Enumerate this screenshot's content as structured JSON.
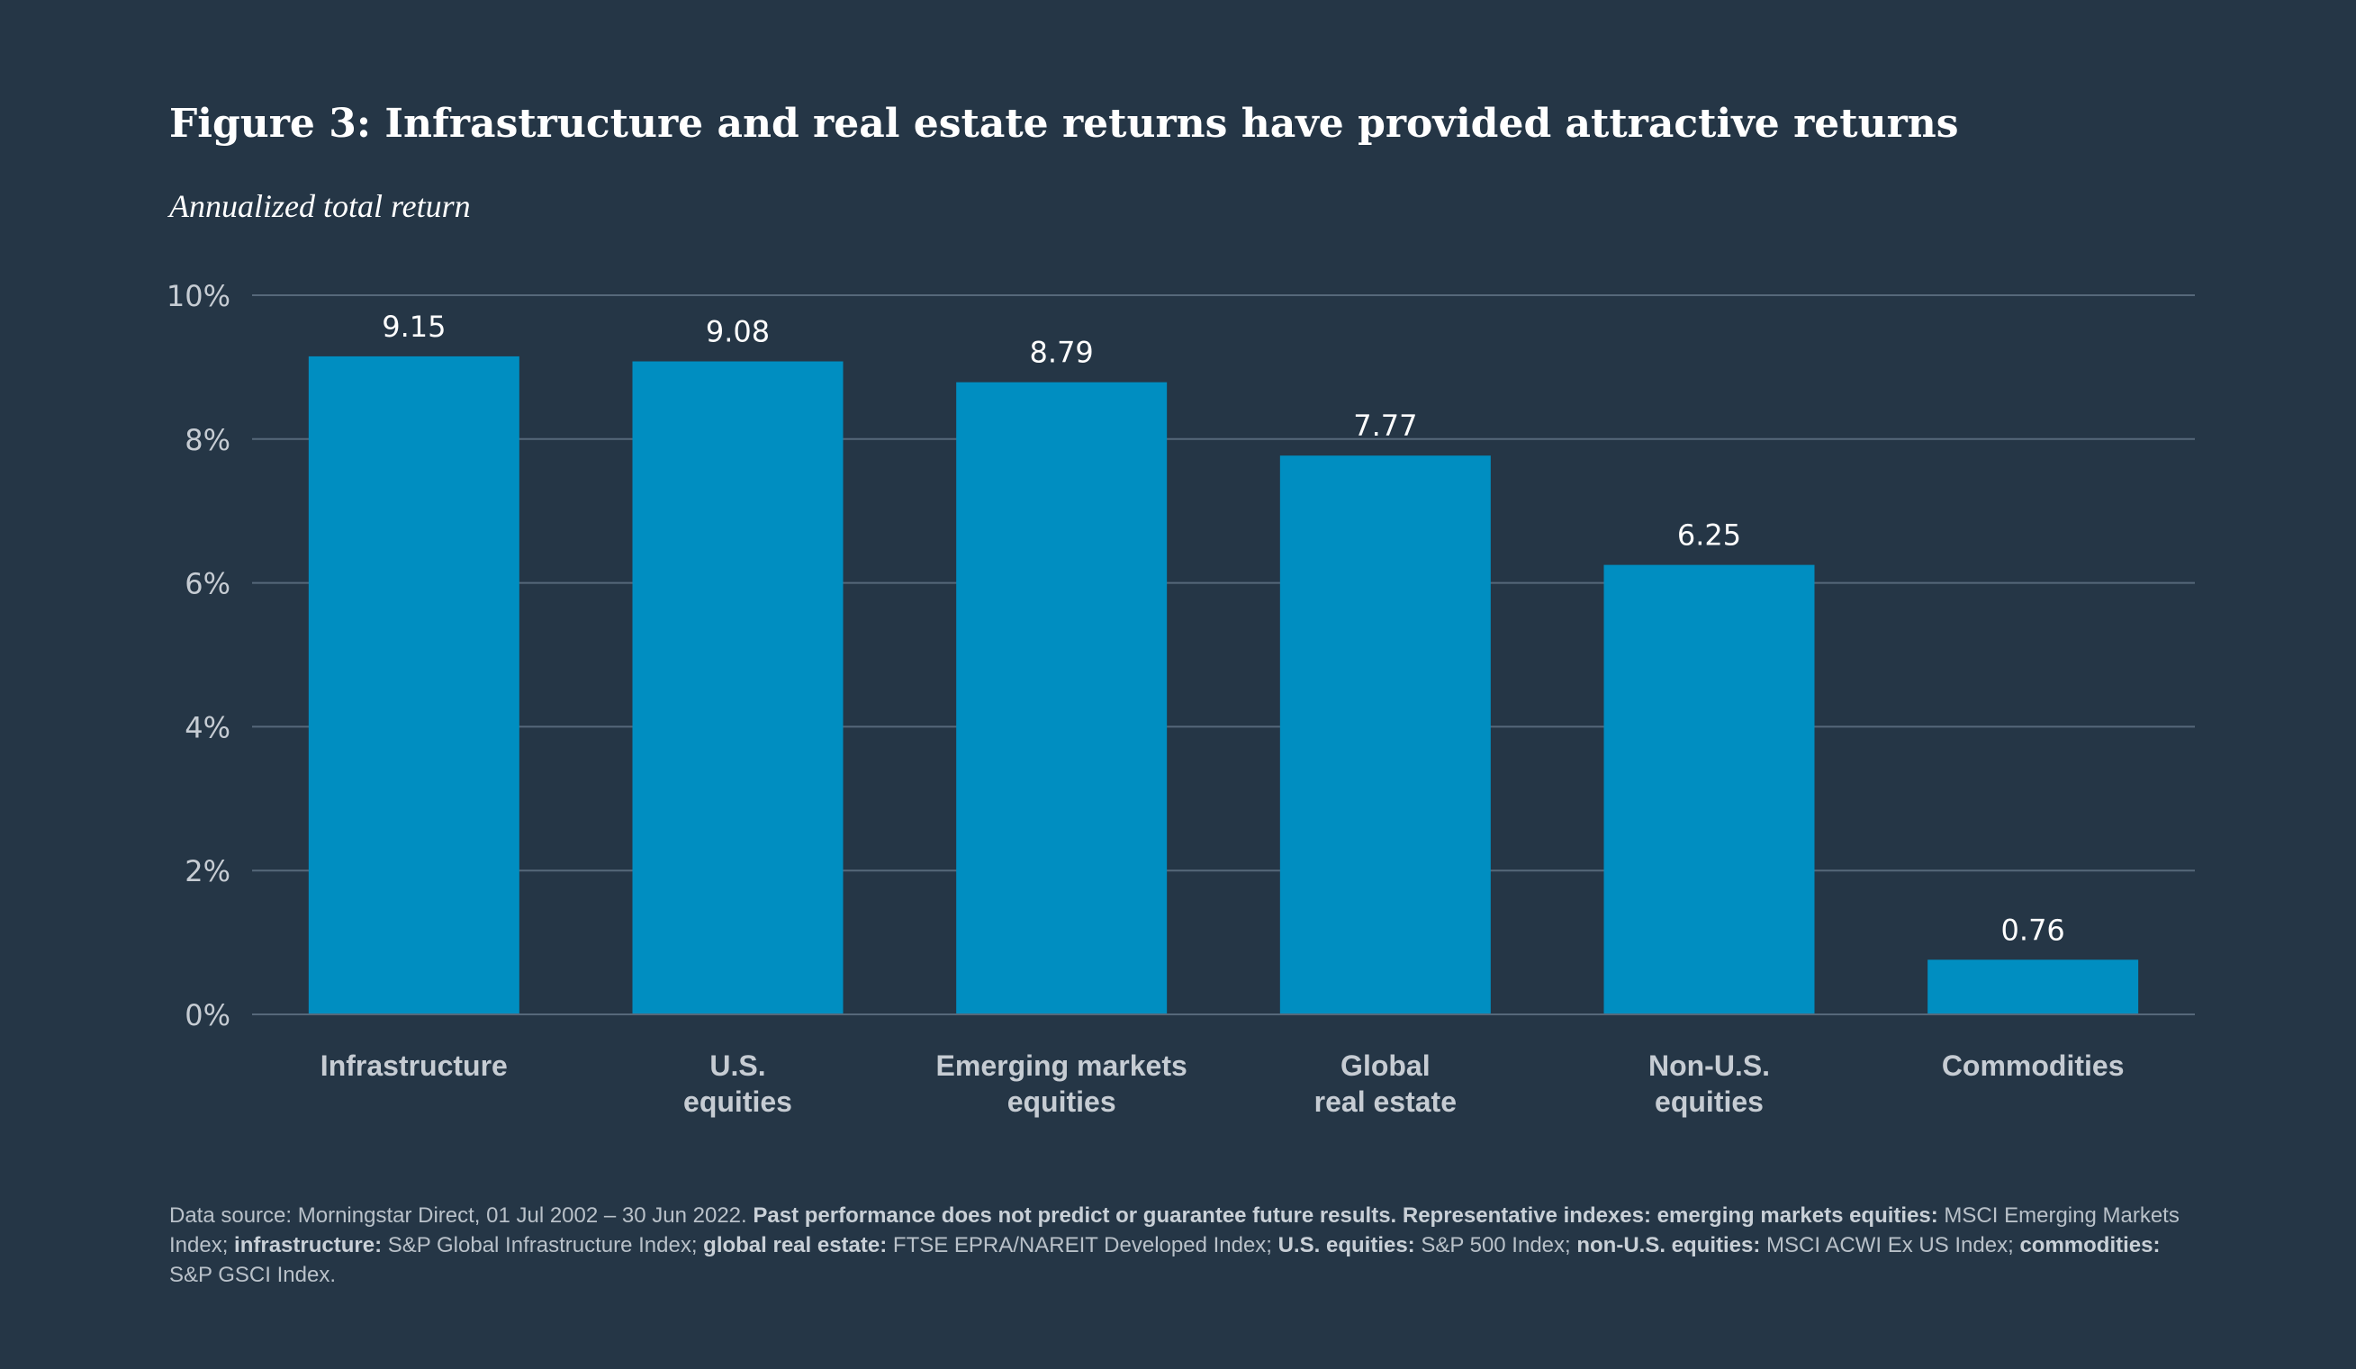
{
  "title": "Figure 3: Infrastructure and real estate returns have provided attractive returns",
  "subtitle": "Annualized total return",
  "colors": {
    "background": "#253646",
    "bar": "#008ec1",
    "gridline": "#56687a",
    "axis_label": "#c6ccd3",
    "value_label": "#ffffff"
  },
  "chart_data": {
    "type": "bar",
    "categories": [
      [
        "Infrastructure"
      ],
      [
        "U.S.",
        "equities"
      ],
      [
        "Emerging markets",
        "equities"
      ],
      [
        "Global",
        "real estate"
      ],
      [
        "Non-U.S.",
        "equities"
      ],
      [
        "Commodities"
      ]
    ],
    "values": [
      9.15,
      9.08,
      8.79,
      7.77,
      6.25,
      0.76
    ],
    "value_labels": [
      "9.15",
      "9.08",
      "8.79",
      "7.77",
      "6.25",
      "0.76"
    ],
    "ylim": [
      0,
      10
    ],
    "yticks": [
      0,
      2,
      4,
      6,
      8,
      10
    ],
    "ytick_labels": [
      "0%",
      "2%",
      "4%",
      "6%",
      "8%",
      "10%"
    ],
    "grid": true,
    "title": "Figure 3: Infrastructure and real estate returns have provided attractive returns",
    "ylabel": "Annualized total return",
    "xlabel": ""
  },
  "footnote": {
    "segments": [
      {
        "text": "Data source: Morningstar Direct, 01 Jul 2002 – 30 Jun 2022. ",
        "bold": false
      },
      {
        "text": "Past performance does not predict or guarantee future results. Representative indexes: emerging markets equities:",
        "bold": true
      },
      {
        "text": " MSCI Emerging Markets Index; ",
        "bold": false
      },
      {
        "text": "infrastructure:",
        "bold": true
      },
      {
        "text": " S&P Global Infrastructure Index; ",
        "bold": false
      },
      {
        "text": "global real estate:",
        "bold": true
      },
      {
        "text": " FTSE EPRA/NAREIT Developed Index; ",
        "bold": false
      },
      {
        "text": "U.S. equities:",
        "bold": true
      },
      {
        "text": " S&P 500 Index; ",
        "bold": false
      },
      {
        "text": "non-U.S. equities:",
        "bold": true
      },
      {
        "text": " MSCI ACWI Ex US Index; ",
        "bold": false
      },
      {
        "text": "commodities:",
        "bold": true
      },
      {
        "text": " S&P GSCI Index.",
        "bold": false
      }
    ]
  }
}
